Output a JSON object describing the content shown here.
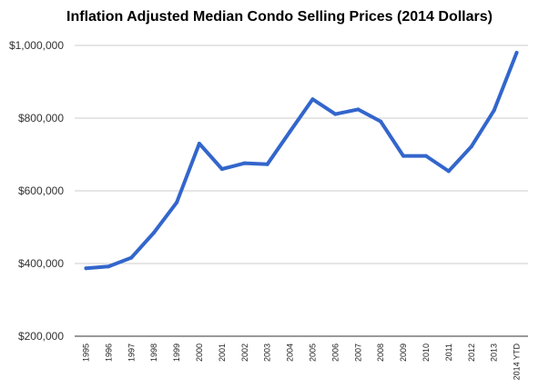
{
  "chart_data": {
    "type": "line",
    "title": "Inflation Adjusted Median Condo Selling Prices (2014 Dollars)",
    "xlabel": "",
    "ylabel": "",
    "categories": [
      "1995",
      "1996",
      "1997",
      "1998",
      "1999",
      "2000",
      "2001",
      "2002",
      "2003",
      "2004",
      "2005",
      "2006",
      "2007",
      "2008",
      "2009",
      "2010",
      "2011",
      "2012",
      "2013",
      "2014 YTD"
    ],
    "series": [
      {
        "values": [
          387000,
          392000,
          416000,
          485000,
          568000,
          730000,
          660000,
          676000,
          673000,
          763000,
          852000,
          811000,
          824000,
          791000,
          696000,
          696000,
          654000,
          722000,
          821000,
          980000
        ]
      }
    ],
    "ylim": [
      200000,
      1000000
    ],
    "yticks": [
      200000,
      400000,
      600000,
      800000,
      1000000
    ],
    "ytick_labels": [
      "$200,000",
      "$400,000",
      "$600,000",
      "$800,000",
      "$1,000,000"
    ],
    "grid": true,
    "legend": "none",
    "line_color": "#3366cc",
    "grid_color": "#cccccc",
    "axis_color": "#333333"
  }
}
